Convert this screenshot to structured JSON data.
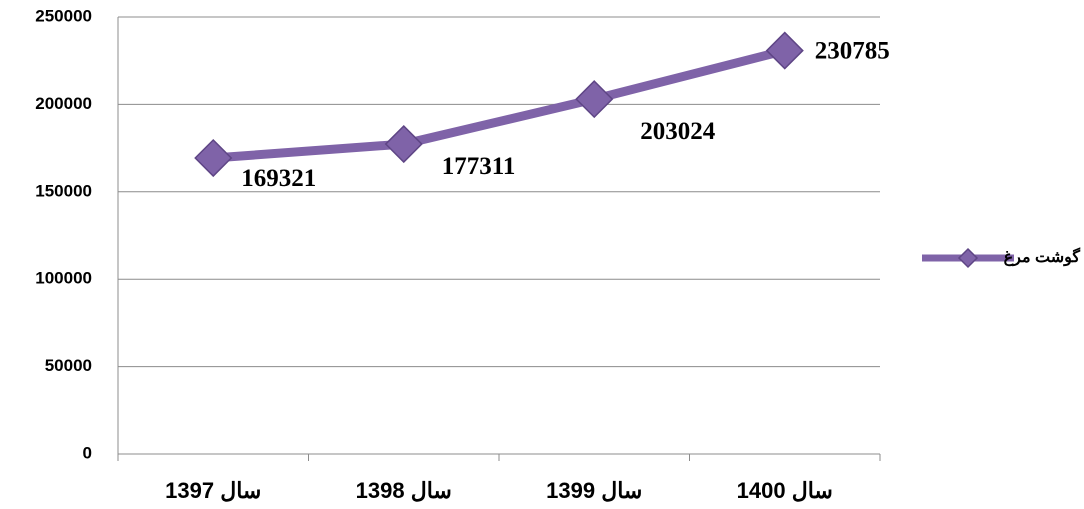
{
  "chart_data": {
    "type": "line",
    "categories": [
      "سال 1397",
      "سال 1398",
      "سال 1399",
      "سال 1400"
    ],
    "series": [
      {
        "name": "گوشت مرغ",
        "color": "#7f63a8",
        "values": [
          169321,
          177311,
          203024,
          230785
        ]
      }
    ],
    "ylim": [
      0,
      250000
    ],
    "yticks": [
      0,
      50000,
      100000,
      150000,
      200000,
      250000
    ],
    "grid": true,
    "legend": "right"
  }
}
